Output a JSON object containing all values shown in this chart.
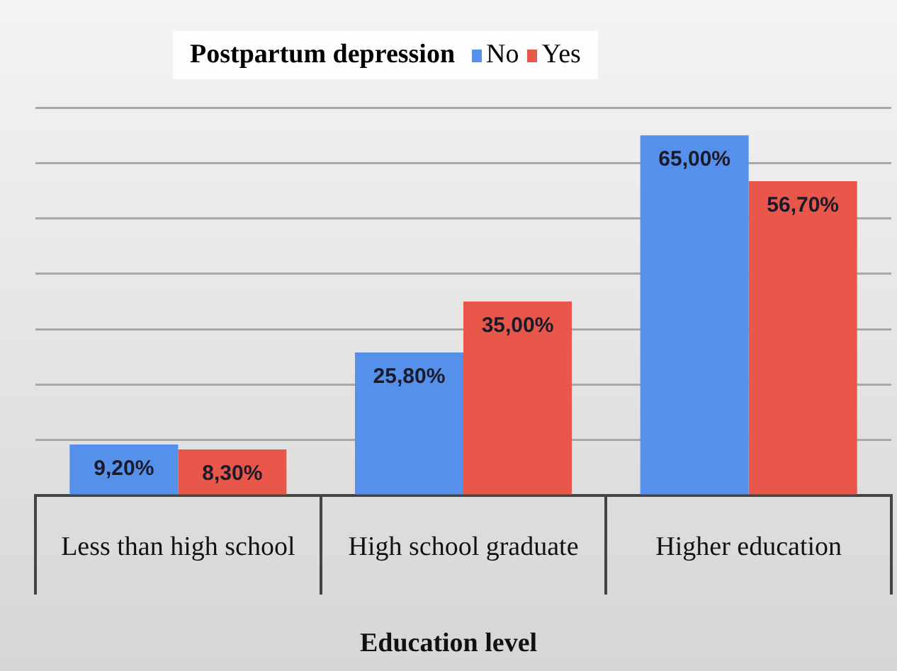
{
  "chart_data": {
    "type": "bar",
    "legend_title": "Postpartum depression",
    "xlabel": "Education level",
    "categories": [
      "Less than high school",
      "High school graduate",
      "Higher education"
    ],
    "series": [
      {
        "name": "No",
        "color": "#5590eb",
        "values": [
          9.2,
          25.8,
          65.0
        ],
        "value_labels": [
          "9,20%",
          "25,80%",
          "65,00%"
        ]
      },
      {
        "name": "Yes",
        "color": "#e8574a",
        "values": [
          8.3,
          35.0,
          56.7
        ],
        "value_labels": [
          "8,30%",
          "35,00%",
          "56,70%"
        ]
      }
    ],
    "ylim": [
      0,
      70
    ],
    "yticks": [
      {
        "value": 0,
        "label": null
      },
      {
        "value": 10,
        "label": null
      },
      {
        "value": 20,
        "label": null
      },
      {
        "value": 30,
        "label": null
      },
      {
        "value": 40,
        "label": null
      },
      {
        "value": 50,
        "label": null
      },
      {
        "value": 60,
        "label": null
      },
      {
        "value": 70,
        "label": null
      }
    ],
    "grid": "y",
    "legend": "top",
    "tick_labels": "x"
  }
}
